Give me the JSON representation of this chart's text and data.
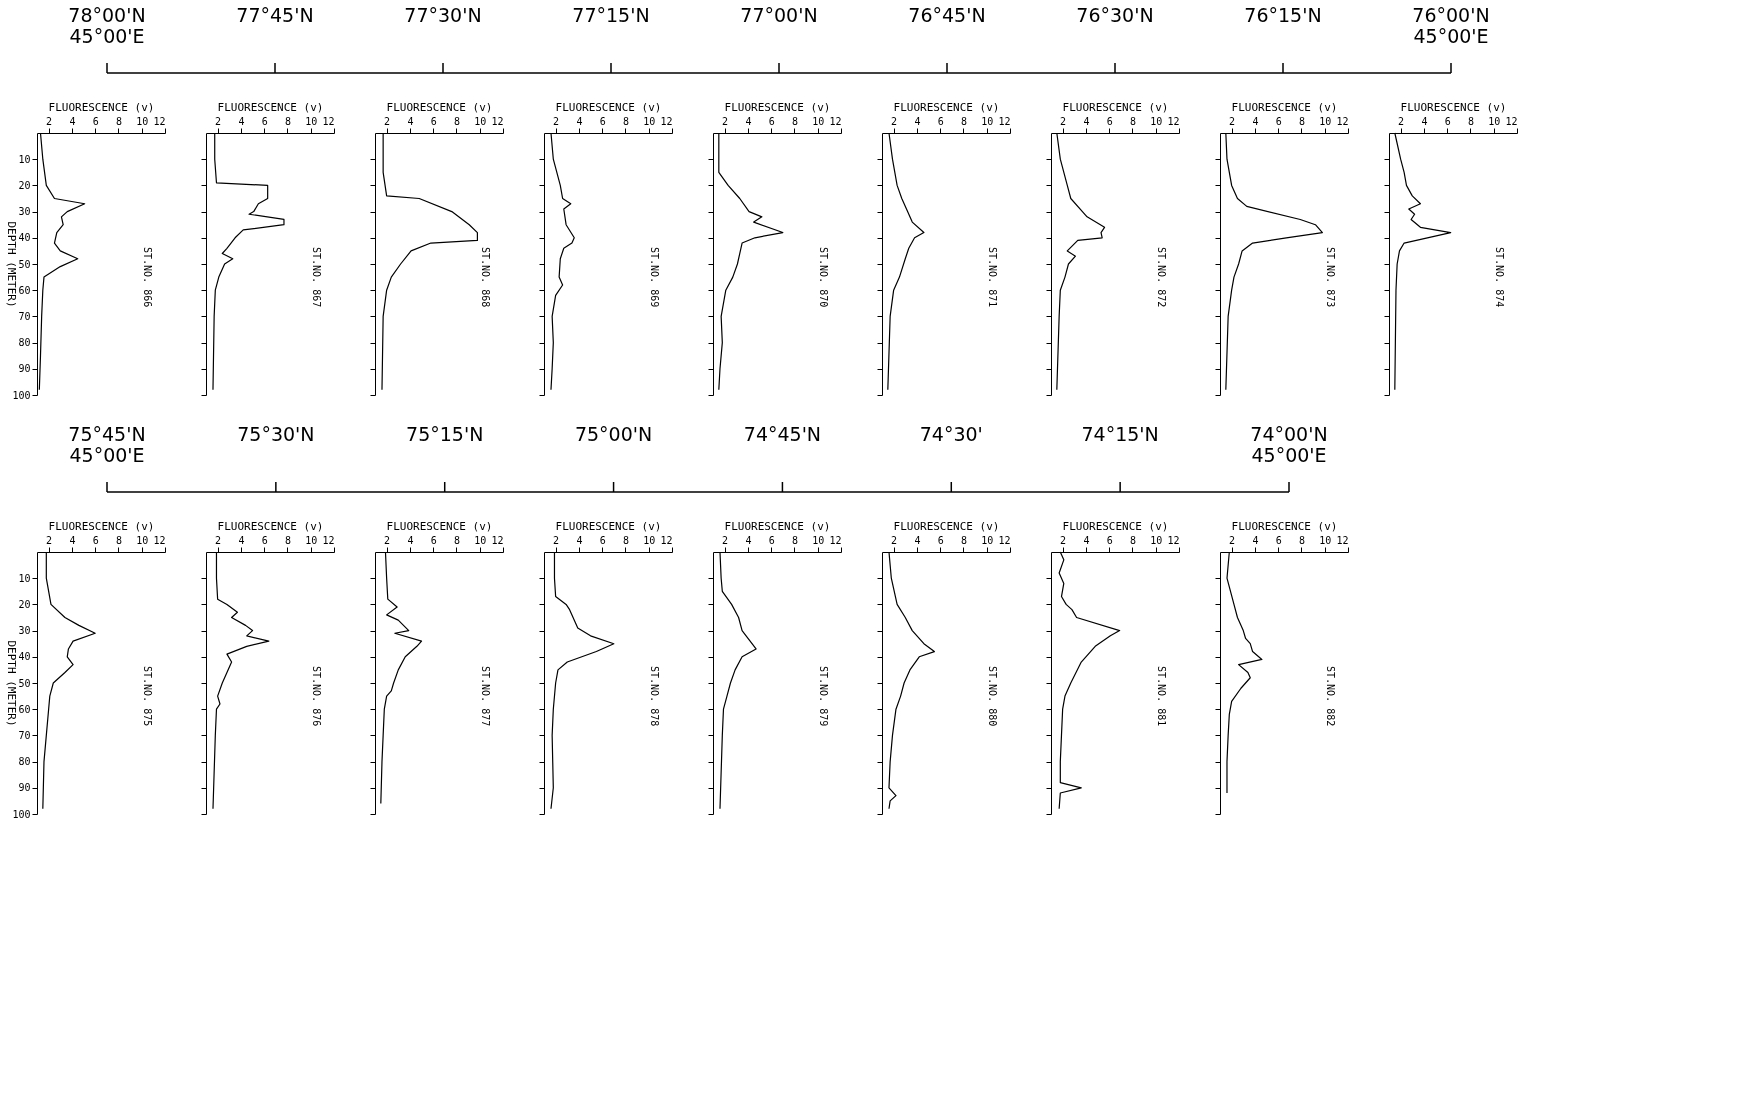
{
  "chart_data": [
    {
      "type": "other",
      "annotations": [
        "78°00'N\n45°00'E",
        "77°45'N",
        "77°30'N",
        "77°15'N",
        "77°00'N",
        "76°45'N",
        "76°30'N",
        "76°15'N",
        "76°00'N\n45°00'E"
      ]
    },
    {
      "type": "line",
      "xlabel": "FLUORESCENCE (v)",
      "ylabel": "DEPTH (METER)",
      "xlim": [
        1,
        12
      ],
      "xticks": [
        2,
        4,
        6,
        8,
        10,
        12
      ],
      "ylim": [
        100,
        0
      ],
      "yticks": [
        10,
        20,
        30,
        40,
        50,
        60,
        70,
        80,
        90,
        100
      ],
      "annotations": [
        "ST.NO. 866"
      ],
      "series": [
        {
          "color": "#000000",
          "x": [
            1.3,
            1.5,
            1.8,
            2.5,
            5.1,
            3.6,
            3.1,
            3.25,
            2.7,
            2.5,
            3.0,
            4.5,
            3.0,
            1.6,
            1.5,
            1.4,
            1.3,
            1.2
          ],
          "values": [
            0,
            10,
            20,
            25,
            27,
            30,
            32,
            35,
            38,
            42,
            45,
            48,
            51,
            55,
            60,
            70,
            85,
            98
          ]
        }
      ]
    },
    {
      "type": "line",
      "xlabel": "FLUORESCENCE (v)",
      "xlim": [
        1,
        12
      ],
      "xticks": [
        2,
        4,
        6,
        8,
        10,
        12
      ],
      "ylim": [
        100,
        0
      ],
      "yticks": [
        10,
        20,
        30,
        40,
        50,
        60,
        70,
        80,
        90,
        100
      ],
      "tick_labels": "x",
      "annotations": [
        "ST.NO. 867"
      ],
      "series": [
        {
          "color": "#000000",
          "x": [
            1.75,
            1.75,
            1.9,
            6.3,
            6.3,
            5.5,
            5.1,
            4.7,
            7.7,
            7.7,
            4.2,
            3.5,
            2.8,
            2.4,
            3.3,
            2.6,
            2.1,
            1.8,
            1.7,
            1.6
          ],
          "values": [
            0,
            10,
            19,
            20,
            25,
            27,
            30,
            31,
            33,
            35,
            37,
            40,
            44,
            46,
            48,
            50,
            55,
            60,
            70,
            98
          ]
        }
      ]
    },
    {
      "type": "line",
      "xlabel": "FLUORESCENCE (v)",
      "xlim": [
        1,
        12
      ],
      "xticks": [
        2,
        4,
        6,
        8,
        10,
        12
      ],
      "ylim": [
        100,
        0
      ],
      "yticks": [
        10,
        20,
        30,
        40,
        50,
        60,
        70,
        80,
        90,
        100
      ],
      "tick_labels": "x",
      "annotations": [
        "ST.NO. 868"
      ],
      "series": [
        {
          "color": "#000000",
          "x": [
            1.7,
            1.7,
            2.0,
            4.8,
            7.6,
            9.1,
            9.8,
            9.8,
            5.8,
            4.1,
            3.2,
            2.4,
            2.0,
            1.7,
            1.6
          ],
          "values": [
            0,
            15,
            24,
            25,
            30,
            35,
            38,
            41,
            42,
            45,
            50,
            55,
            60,
            70,
            98
          ]
        }
      ]
    },
    {
      "type": "line",
      "xlabel": "FLUORESCENCE (v)",
      "xlim": [
        1,
        12
      ],
      "xticks": [
        2,
        4,
        6,
        8,
        10,
        12
      ],
      "ylim": [
        100,
        0
      ],
      "yticks": [
        10,
        20,
        30,
        40,
        50,
        60,
        70,
        80,
        90,
        100
      ],
      "tick_labels": "x",
      "annotations": [
        "ST.NO. 869"
      ],
      "series": [
        {
          "color": "#000000",
          "x": [
            1.6,
            1.8,
            2.4,
            2.6,
            3.3,
            2.7,
            2.9,
            3.6,
            3.4,
            2.7,
            2.4,
            2.3,
            2.6,
            2.0,
            1.7,
            1.8,
            1.7,
            1.6
          ],
          "values": [
            0,
            10,
            20,
            25,
            27,
            29,
            35,
            40,
            42,
            44,
            48,
            55,
            58,
            62,
            70,
            80,
            90,
            98
          ]
        }
      ]
    },
    {
      "type": "line",
      "xlabel": "FLUORESCENCE (v)",
      "xlim": [
        1,
        12
      ],
      "xticks": [
        2,
        4,
        6,
        8,
        10,
        12
      ],
      "ylim": [
        100,
        0
      ],
      "yticks": [
        10,
        20,
        30,
        40,
        50,
        60,
        70,
        80,
        90,
        100
      ],
      "tick_labels": "x",
      "annotations": [
        "ST.NO. 870"
      ],
      "series": [
        {
          "color": "#000000",
          "x": [
            1.5,
            1.5,
            2.3,
            3.3,
            4.1,
            5.2,
            4.5,
            7.0,
            4.6,
            3.5,
            3.1,
            2.7,
            2.1,
            1.7,
            1.8,
            1.6,
            1.5
          ],
          "values": [
            0,
            15,
            20,
            25,
            30,
            32,
            34,
            38,
            40,
            42,
            50,
            55,
            60,
            70,
            80,
            90,
            98
          ]
        }
      ]
    },
    {
      "type": "line",
      "xlabel": "FLUORESCENCE (v)",
      "xlim": [
        1,
        12
      ],
      "xticks": [
        2,
        4,
        6,
        8,
        10,
        12
      ],
      "ylim": [
        100,
        0
      ],
      "yticks": [
        10,
        20,
        30,
        40,
        50,
        60,
        70,
        80,
        90,
        100
      ],
      "tick_labels": "x",
      "annotations": [
        "ST.NO. 871"
      ],
      "series": [
        {
          "color": "#000000",
          "x": [
            1.6,
            1.9,
            2.3,
            2.7,
            3.2,
            3.6,
            4.6,
            3.8,
            3.3,
            3.0,
            2.5,
            2.0,
            1.7,
            1.5
          ],
          "values": [
            0,
            10,
            20,
            25,
            30,
            34,
            38,
            40,
            44,
            48,
            55,
            60,
            70,
            98
          ]
        }
      ]
    },
    {
      "type": "line",
      "xlabel": "FLUORESCENCE (v)",
      "xlim": [
        1,
        12
      ],
      "xticks": [
        2,
        4,
        6,
        8,
        10,
        12
      ],
      "ylim": [
        100,
        0
      ],
      "yticks": [
        10,
        20,
        30,
        40,
        50,
        60,
        70,
        80,
        90,
        100
      ],
      "tick_labels": "x",
      "annotations": [
        "ST.NO. 872"
      ],
      "series": [
        {
          "color": "#000000",
          "x": [
            1.5,
            1.8,
            2.4,
            2.7,
            3.7,
            4.1,
            5.6,
            5.3,
            5.4,
            3.3,
            2.4,
            3.1,
            2.5,
            2.2,
            1.8,
            1.7,
            1.5
          ],
          "values": [
            0,
            10,
            20,
            25,
            30,
            32,
            36,
            38,
            40,
            41,
            45,
            47,
            50,
            55,
            60,
            70,
            98
          ]
        }
      ]
    },
    {
      "type": "line",
      "xlabel": "FLUORESCENCE (v)",
      "xlim": [
        1,
        12
      ],
      "xticks": [
        2,
        4,
        6,
        8,
        10,
        12
      ],
      "ylim": [
        100,
        0
      ],
      "yticks": [
        10,
        20,
        30,
        40,
        50,
        60,
        70,
        80,
        90,
        100
      ],
      "tick_labels": "x",
      "annotations": [
        "ST.NO. 873"
      ],
      "series": [
        {
          "color": "#000000",
          "x": [
            1.5,
            1.6,
            2.0,
            2.5,
            3.3,
            7.9,
            9.2,
            9.8,
            6.7,
            3.8,
            2.9,
            2.6,
            2.2,
            2.0,
            1.7,
            1.5
          ],
          "values": [
            0,
            10,
            20,
            25,
            28,
            33,
            35,
            38,
            40,
            42,
            45,
            50,
            55,
            60,
            70,
            98
          ]
        }
      ]
    },
    {
      "type": "line",
      "xlabel": "FLUORESCENCE (v)",
      "xlim": [
        1,
        12
      ],
      "xticks": [
        2,
        4,
        6,
        8,
        10,
        12
      ],
      "ylim": [
        100,
        0
      ],
      "yticks": [
        10,
        20,
        30,
        40,
        50,
        60,
        70,
        80,
        90,
        100
      ],
      "tick_labels": "x",
      "annotations": [
        "ST.NO. 874"
      ],
      "series": [
        {
          "color": "#000000",
          "x": [
            1.5,
            2.0,
            2.3,
            2.5,
            3.0,
            3.7,
            2.7,
            3.2,
            2.9,
            3.7,
            6.3,
            4.3,
            2.3,
            1.9,
            1.7,
            1.6,
            1.5
          ],
          "values": [
            0,
            10,
            15,
            20,
            24,
            27,
            29,
            31,
            33,
            36,
            38,
            40,
            42,
            45,
            50,
            60,
            98
          ]
        }
      ]
    },
    {
      "type": "other",
      "annotations": [
        "75°45'N\n45°00'E",
        "75°30'N",
        "75°15'N",
        "75°00'N",
        "74°45'N",
        "74°30'",
        "74°15'N",
        "74°00'N\n45°00'E"
      ]
    },
    {
      "type": "line",
      "xlabel": "FLUORESCENCE (v)",
      "ylabel": "DEPTH (METER)",
      "xlim": [
        1,
        12
      ],
      "xticks": [
        2,
        4,
        6,
        8,
        10,
        12
      ],
      "ylim": [
        100,
        0
      ],
      "yticks": [
        10,
        20,
        30,
        40,
        50,
        60,
        70,
        80,
        90,
        100
      ],
      "annotations": [
        "ST.NO. 875"
      ],
      "series": [
        {
          "color": "#000000",
          "x": [
            1.8,
            1.8,
            2.2,
            3.4,
            4.6,
            6.0,
            4.1,
            3.7,
            3.6,
            4.1,
            3.4,
            2.4,
            2.1,
            2.0,
            1.8,
            1.6,
            1.5
          ],
          "values": [
            0,
            10,
            20,
            25,
            28,
            31,
            34,
            37,
            40,
            43,
            46,
            50,
            55,
            60,
            70,
            80,
            98
          ]
        }
      ]
    },
    {
      "type": "line",
      "xlabel": "FLUORESCENCE (v)",
      "xlim": [
        1,
        12
      ],
      "xticks": [
        2,
        4,
        6,
        8,
        10,
        12
      ],
      "ylim": [
        100,
        0
      ],
      "yticks": [
        10,
        20,
        30,
        40,
        50,
        60,
        70,
        80,
        90,
        100
      ],
      "tick_labels": "x",
      "annotations": [
        "ST.NO. 876"
      ],
      "series": [
        {
          "color": "#000000",
          "x": [
            1.9,
            1.9,
            2.0,
            2.8,
            3.7,
            3.2,
            4.4,
            5.0,
            4.5,
            6.4,
            4.5,
            2.8,
            3.2,
            2.8,
            2.4,
            2.0,
            2.2,
            1.9,
            1.8,
            1.6
          ],
          "values": [
            0,
            10,
            18,
            20,
            23,
            25,
            28,
            30,
            32,
            34,
            36,
            39,
            42,
            46,
            50,
            55,
            58,
            60,
            70,
            98
          ]
        }
      ]
    },
    {
      "type": "line",
      "xlabel": "FLUORESCENCE (v)",
      "xlim": [
        1,
        12
      ],
      "xticks": [
        2,
        4,
        6,
        8,
        10,
        12
      ],
      "ylim": [
        100,
        0
      ],
      "yticks": [
        10,
        20,
        30,
        40,
        50,
        60,
        70,
        80,
        90,
        100
      ],
      "tick_labels": "x",
      "annotations": [
        "ST.NO. 877"
      ],
      "series": [
        {
          "color": "#000000",
          "x": [
            1.9,
            2.0,
            2.1,
            2.9,
            2.0,
            3.0,
            3.9,
            2.7,
            5.0,
            4.6,
            3.6,
            3.0,
            2.6,
            2.4,
            2.0,
            1.8,
            1.7,
            1.6,
            1.5
          ],
          "values": [
            0,
            10,
            18,
            21,
            24,
            26,
            30,
            31,
            34,
            36,
            40,
            45,
            50,
            53,
            55,
            60,
            70,
            80,
            96
          ]
        }
      ]
    },
    {
      "type": "line",
      "xlabel": "FLUORESCENCE (v)",
      "xlim": [
        1,
        12
      ],
      "xticks": [
        2,
        4,
        6,
        8,
        10,
        12
      ],
      "ylim": [
        100,
        0
      ],
      "yticks": [
        10,
        20,
        30,
        40,
        50,
        60,
        70,
        80,
        90,
        100
      ],
      "tick_labels": "x",
      "annotations": [
        "ST.NO. 878"
      ],
      "series": [
        {
          "color": "#000000",
          "x": [
            1.9,
            1.9,
            2.0,
            2.9,
            3.2,
            3.7,
            3.9,
            5.0,
            7.0,
            5.5,
            3.0,
            2.2,
            2.0,
            1.8,
            1.7,
            1.8,
            1.6
          ],
          "values": [
            0,
            10,
            17,
            20,
            22,
            27,
            29,
            32,
            35,
            38,
            42,
            45,
            50,
            60,
            70,
            90,
            98
          ]
        }
      ]
    },
    {
      "type": "line",
      "xlabel": "FLUORESCENCE (v)",
      "xlim": [
        1,
        12
      ],
      "xticks": [
        2,
        4,
        6,
        8,
        10,
        12
      ],
      "ylim": [
        100,
        0
      ],
      "yticks": [
        10,
        20,
        30,
        40,
        50,
        60,
        70,
        80,
        90,
        100
      ],
      "tick_labels": "x",
      "annotations": [
        "ST.NO. 879"
      ],
      "series": [
        {
          "color": "#000000",
          "x": [
            1.6,
            1.7,
            1.8,
            2.6,
            3.2,
            3.5,
            4.7,
            3.5,
            2.9,
            2.5,
            2.2,
            1.9,
            1.8,
            1.6
          ],
          "values": [
            0,
            10,
            15,
            20,
            25,
            30,
            37,
            40,
            45,
            50,
            55,
            60,
            70,
            98
          ]
        }
      ]
    },
    {
      "type": "line",
      "xlabel": "FLUORESCENCE (v)",
      "xlim": [
        1,
        12
      ],
      "xticks": [
        2,
        4,
        6,
        8,
        10,
        12
      ],
      "ylim": [
        100,
        0
      ],
      "yticks": [
        10,
        20,
        30,
        40,
        50,
        60,
        70,
        80,
        90,
        100
      ],
      "tick_labels": "x",
      "annotations": [
        "ST.NO. 880"
      ],
      "series": [
        {
          "color": "#000000",
          "x": [
            1.6,
            1.8,
            2.3,
            3.0,
            3.6,
            4.6,
            5.5,
            4.2,
            3.4,
            2.9,
            2.6,
            2.2,
            1.9,
            1.7,
            1.6,
            2.2,
            1.7,
            1.6
          ],
          "values": [
            0,
            10,
            20,
            25,
            30,
            35,
            38,
            40,
            45,
            50,
            55,
            60,
            70,
            80,
            90,
            93,
            95,
            98
          ]
        }
      ]
    },
    {
      "type": "line",
      "xlabel": "FLUORESCENCE (v)",
      "xlim": [
        1,
        12
      ],
      "xticks": [
        2,
        4,
        6,
        8,
        10,
        12
      ],
      "ylim": [
        100,
        0
      ],
      "yticks": [
        10,
        20,
        30,
        40,
        50,
        60,
        70,
        80,
        90,
        100
      ],
      "tick_labels": "x",
      "annotations": [
        "ST.NO. 881"
      ],
      "series": [
        {
          "color": "#000000",
          "x": [
            1.8,
            2.1,
            1.7,
            2.1,
            1.9,
            2.3,
            2.8,
            3.2,
            6.9,
            6.1,
            4.8,
            3.6,
            2.7,
            2.2,
            2.0,
            1.9,
            1.8,
            1.8,
            3.6,
            1.8,
            1.7
          ],
          "values": [
            0,
            3,
            8,
            12,
            17,
            20,
            22,
            25,
            30,
            32,
            36,
            42,
            50,
            55,
            60,
            70,
            80,
            88,
            90,
            92,
            98
          ]
        }
      ]
    },
    {
      "type": "line",
      "xlabel": "FLUORESCENCE (v)",
      "xlim": [
        1,
        12
      ],
      "xticks": [
        2,
        4,
        6,
        8,
        10,
        12
      ],
      "ylim": [
        100,
        0
      ],
      "yticks": [
        10,
        20,
        30,
        40,
        50,
        60,
        70,
        80,
        90,
        100
      ],
      "tick_labels": "x",
      "annotations": [
        "ST.NO. 882"
      ],
      "series": [
        {
          "color": "#000000",
          "x": [
            1.8,
            1.6,
            2.2,
            2.5,
            3.0,
            3.2,
            3.6,
            3.8,
            4.6,
            2.6,
            3.4,
            3.6,
            2.8,
            2.0,
            1.8,
            1.7,
            1.6,
            1.6
          ],
          "values": [
            0,
            10,
            20,
            25,
            30,
            33,
            35,
            38,
            41,
            43,
            46,
            48,
            52,
            57,
            62,
            70,
            80,
            92
          ]
        }
      ]
    }
  ]
}
